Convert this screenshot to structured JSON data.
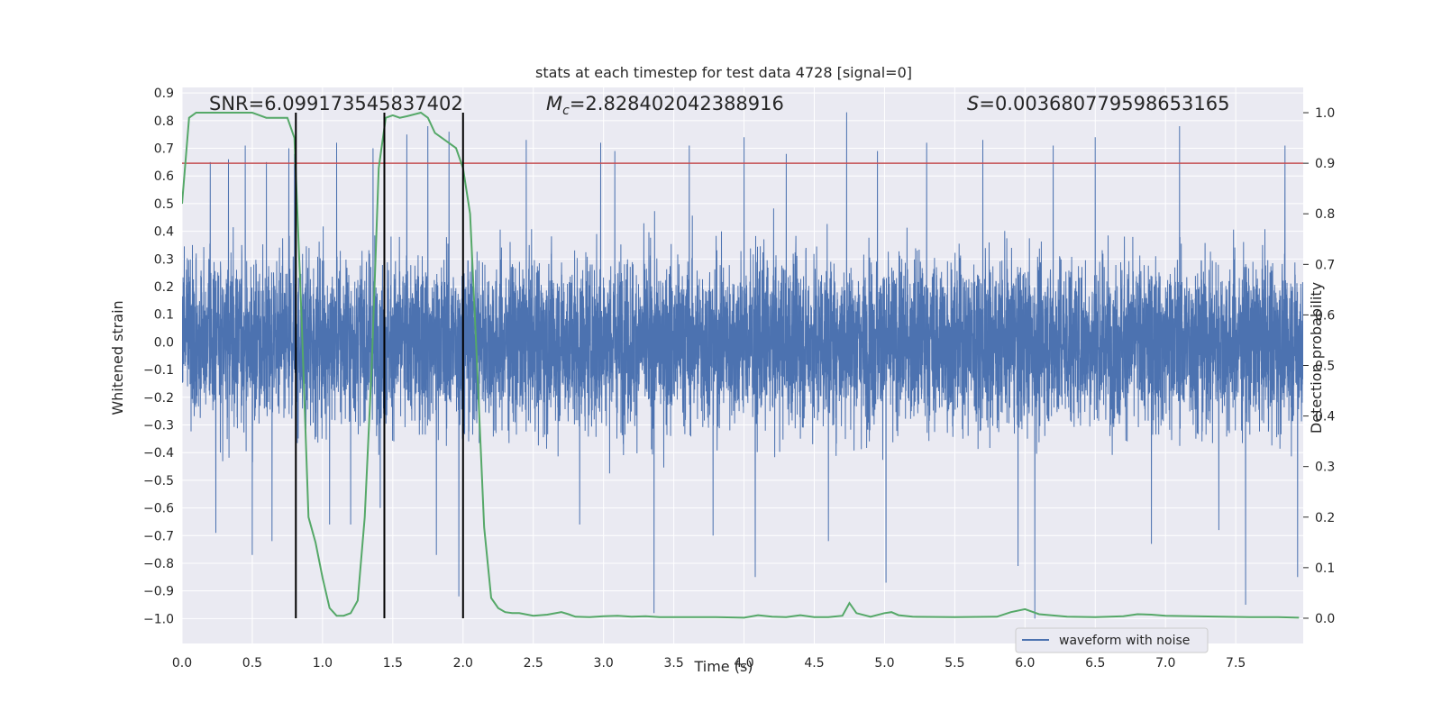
{
  "chart_data": {
    "type": "line",
    "title": "stats at each timestep for test data 4728 [signal=0]",
    "xlabel": "Time (s)",
    "ylabel_left": "Whitened strain",
    "ylabel_right": "Detection probability",
    "xlim": [
      0.0,
      7.98
    ],
    "ylim_left": [
      -1.09,
      0.92
    ],
    "ylim_right": [
      -0.05,
      1.05
    ],
    "x_ticks": [
      0.0,
      0.5,
      1.0,
      1.5,
      2.0,
      2.5,
      3.0,
      3.5,
      4.0,
      4.5,
      5.0,
      5.5,
      6.0,
      6.5,
      7.0,
      7.5
    ],
    "x_tick_labels": [
      "0.0",
      "0.5",
      "1.0",
      "1.5",
      "2.0",
      "2.5",
      "3.0",
      "3.5",
      "4.0",
      "4.5",
      "5.0",
      "5.5",
      "6.0",
      "6.5",
      "7.0",
      "7.5"
    ],
    "y_left_ticks": [
      0.9,
      0.8,
      0.7,
      0.6,
      0.5,
      0.4,
      0.3,
      0.2,
      0.1,
      0.0,
      -0.1,
      -0.2,
      -0.3,
      -0.4,
      -0.5,
      -0.6,
      -0.7,
      -0.8,
      -0.9,
      -1.0
    ],
    "y_left_tick_labels": [
      "0.9",
      "0.8",
      "0.7",
      "0.6",
      "0.5",
      "0.4",
      "0.3",
      "0.2",
      "0.1",
      "0.0",
      "−0.1",
      "−0.2",
      "−0.3",
      "−0.4",
      "−0.5",
      "−0.6",
      "−0.7",
      "−0.8",
      "−0.9",
      "−1.0"
    ],
    "y_right_ticks": [
      1.0,
      0.9,
      0.8,
      0.7,
      0.6,
      0.5,
      0.4,
      0.3,
      0.2,
      0.1,
      0.0
    ],
    "y_right_tick_labels": [
      "1.0",
      "0.9",
      "0.8",
      "0.7",
      "0.6",
      "0.5",
      "0.4",
      "0.3",
      "0.2",
      "0.1",
      "0.0"
    ],
    "annotations": {
      "snr": "SNR=6.099173545837402",
      "mc_symbol": "M",
      "mc_sub": "c",
      "mc_value": "=2.828402042388916",
      "s_symbol": "S",
      "s_value": "=0.003680779598653165"
    },
    "threshold": 0.9,
    "vertical_lines": [
      0.81,
      1.44,
      2.0
    ],
    "legend": {
      "label": "waveform with noise",
      "location": "lower-right"
    },
    "series": [
      {
        "name": "waveform with noise",
        "axis": "left",
        "style": "dense-noise",
        "band_typical": [
          -0.45,
          0.45
        ],
        "spikes": [
          {
            "x": 0.2,
            "y": 0.65
          },
          {
            "x": 0.24,
            "y": -0.69
          },
          {
            "x": 0.33,
            "y": 0.66
          },
          {
            "x": 0.45,
            "y": 0.71
          },
          {
            "x": 0.5,
            "y": -0.77
          },
          {
            "x": 0.6,
            "y": 0.65
          },
          {
            "x": 0.64,
            "y": -0.72
          },
          {
            "x": 0.76,
            "y": 0.7
          },
          {
            "x": 0.8,
            "y": 0.68
          },
          {
            "x": 1.05,
            "y": -0.66
          },
          {
            "x": 1.1,
            "y": 0.72
          },
          {
            "x": 1.2,
            "y": -0.66
          },
          {
            "x": 1.36,
            "y": 0.7
          },
          {
            "x": 1.41,
            "y": -0.6
          },
          {
            "x": 1.6,
            "y": 0.75
          },
          {
            "x": 1.75,
            "y": 0.78
          },
          {
            "x": 1.81,
            "y": -0.77
          },
          {
            "x": 1.9,
            "y": 0.76
          },
          {
            "x": 1.97,
            "y": -0.92
          },
          {
            "x": 2.45,
            "y": 0.73
          },
          {
            "x": 2.83,
            "y": -0.66
          },
          {
            "x": 2.98,
            "y": 0.72
          },
          {
            "x": 3.08,
            "y": 0.69
          },
          {
            "x": 3.36,
            "y": -0.98
          },
          {
            "x": 3.61,
            "y": 0.71
          },
          {
            "x": 3.78,
            "y": -0.7
          },
          {
            "x": 4.0,
            "y": 0.74
          },
          {
            "x": 4.08,
            "y": -0.85
          },
          {
            "x": 4.3,
            "y": 0.68
          },
          {
            "x": 4.6,
            "y": -0.72
          },
          {
            "x": 4.73,
            "y": 0.83
          },
          {
            "x": 4.95,
            "y": 0.69
          },
          {
            "x": 5.01,
            "y": -0.87
          },
          {
            "x": 5.3,
            "y": 0.72
          },
          {
            "x": 5.7,
            "y": 0.73
          },
          {
            "x": 5.95,
            "y": -0.81
          },
          {
            "x": 6.07,
            "y": -1.0
          },
          {
            "x": 6.2,
            "y": 0.71
          },
          {
            "x": 6.5,
            "y": 0.74
          },
          {
            "x": 6.9,
            "y": -0.73
          },
          {
            "x": 7.1,
            "y": 0.78
          },
          {
            "x": 7.38,
            "y": -0.68
          },
          {
            "x": 7.57,
            "y": -0.95
          },
          {
            "x": 7.85,
            "y": 0.71
          },
          {
            "x": 7.94,
            "y": -0.85
          }
        ]
      },
      {
        "name": "Detection probability",
        "axis": "right",
        "x": [
          0.0,
          0.05,
          0.1,
          0.15,
          0.2,
          0.3,
          0.4,
          0.5,
          0.6,
          0.7,
          0.75,
          0.8,
          0.85,
          0.9,
          0.95,
          1.0,
          1.05,
          1.1,
          1.15,
          1.2,
          1.25,
          1.3,
          1.35,
          1.4,
          1.45,
          1.5,
          1.55,
          1.6,
          1.7,
          1.75,
          1.8,
          1.85,
          1.9,
          1.95,
          2.0,
          2.05,
          2.1,
          2.15,
          2.2,
          2.25,
          2.3,
          2.35,
          2.4,
          2.5,
          2.6,
          2.7,
          2.75,
          2.8,
          2.9,
          3.0,
          3.1,
          3.2,
          3.3,
          3.4,
          3.6,
          3.8,
          4.0,
          4.1,
          4.2,
          4.3,
          4.4,
          4.5,
          4.6,
          4.7,
          4.75,
          4.8,
          4.9,
          5.0,
          5.05,
          5.1,
          5.2,
          5.5,
          5.8,
          5.9,
          6.0,
          6.1,
          6.3,
          6.5,
          6.7,
          6.8,
          6.9,
          7.0,
          7.2,
          7.4,
          7.6,
          7.8,
          7.95
        ],
        "y": [
          0.82,
          0.99,
          1.0,
          1.0,
          1.0,
          1.0,
          1.0,
          1.0,
          0.99,
          0.99,
          0.99,
          0.95,
          0.6,
          0.2,
          0.15,
          0.08,
          0.02,
          0.005,
          0.005,
          0.01,
          0.035,
          0.2,
          0.5,
          0.89,
          0.99,
          0.995,
          0.99,
          0.993,
          1.0,
          0.99,
          0.96,
          0.95,
          0.94,
          0.93,
          0.89,
          0.8,
          0.5,
          0.18,
          0.04,
          0.02,
          0.012,
          0.01,
          0.01,
          0.005,
          0.007,
          0.012,
          0.008,
          0.003,
          0.002,
          0.004,
          0.005,
          0.003,
          0.004,
          0.002,
          0.002,
          0.002,
          0.001,
          0.006,
          0.003,
          0.002,
          0.006,
          0.002,
          0.002,
          0.005,
          0.03,
          0.01,
          0.003,
          0.01,
          0.012,
          0.006,
          0.003,
          0.002,
          0.003,
          0.012,
          0.018,
          0.008,
          0.003,
          0.002,
          0.004,
          0.008,
          0.007,
          0.005,
          0.004,
          0.003,
          0.002,
          0.002,
          0.001
        ]
      }
    ],
    "colors": {
      "plot_bg": "#eaeaf2",
      "grid": "#ffffff",
      "waveform": "#4c72b0",
      "probability": "#55a868",
      "threshold": "#c44e52",
      "vlines": "#000000",
      "legend_bg": "#eaeaf2",
      "legend_border": "#cccccc"
    }
  }
}
